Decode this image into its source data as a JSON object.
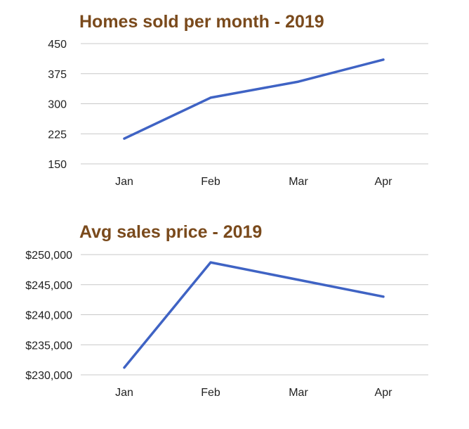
{
  "colors": {
    "title": "#7a4a1c",
    "line": "#3f63c4",
    "grid": "#c8c8c8",
    "text": "#222222"
  },
  "chart_data": [
    {
      "type": "line",
      "title": "Homes sold per month - 2019",
      "categories": [
        "Jan",
        "Feb",
        "Mar",
        "Apr"
      ],
      "values": [
        213,
        315,
        355,
        410
      ],
      "yticks": [
        "450",
        "375",
        "300",
        "225",
        "150"
      ],
      "ylim": [
        150,
        450
      ],
      "grid": true,
      "legend": "none"
    },
    {
      "type": "line",
      "title": "Avg sales price - 2019",
      "categories": [
        "Jan",
        "Feb",
        "Mar",
        "Apr"
      ],
      "values": [
        231200,
        248700,
        245800,
        243000
      ],
      "yticks": [
        "$250,000",
        "$245,000",
        "$240,000",
        "$235,000",
        "$230,000"
      ],
      "ylim": [
        230000,
        250000
      ],
      "grid": true,
      "legend": "none"
    }
  ]
}
